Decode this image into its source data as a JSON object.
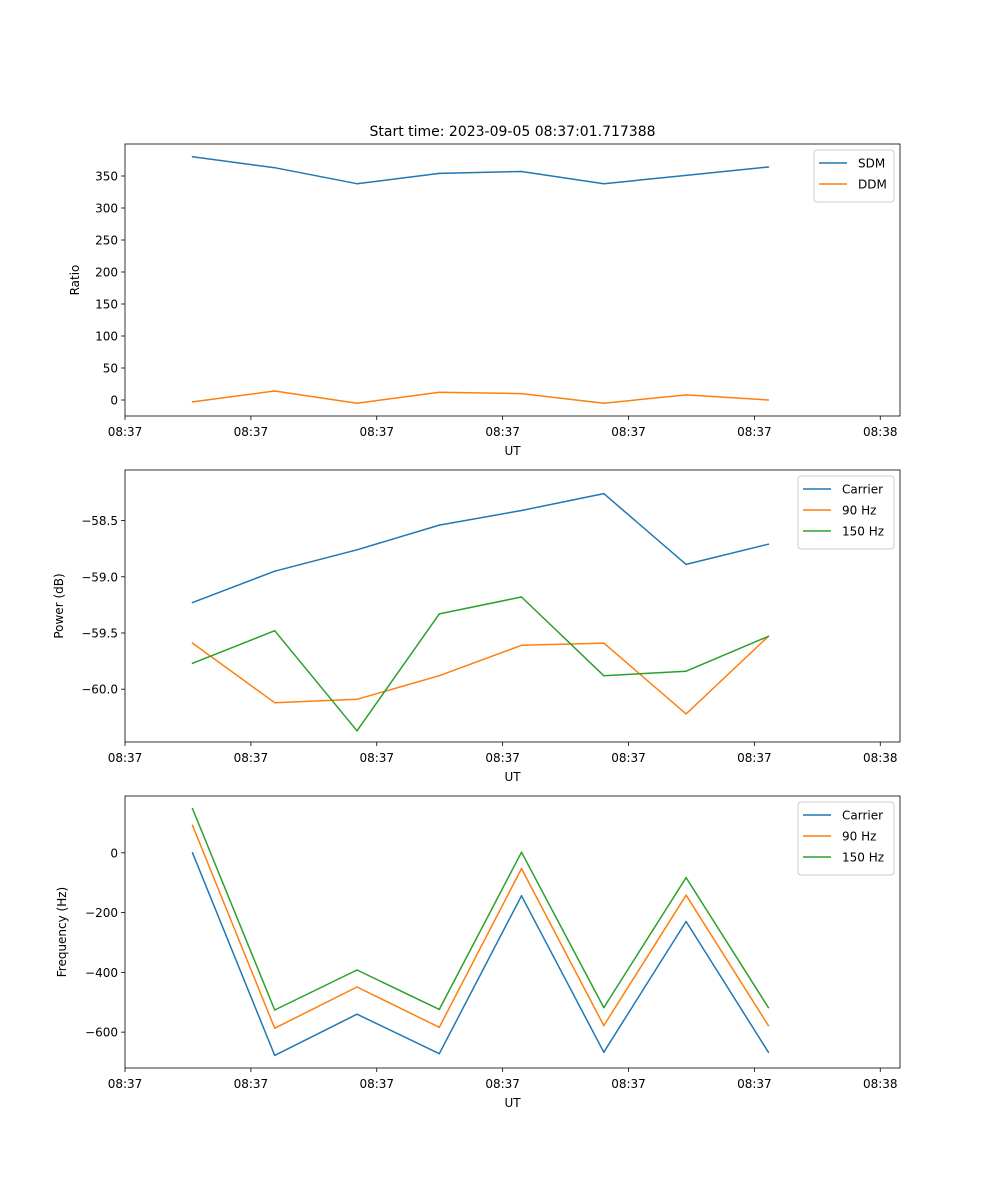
{
  "figure_title": "Start time: 2023-09-05 08:37:01.717388",
  "colors": {
    "blue": "#1f77b4",
    "orange": "#ff7f0e",
    "green": "#2ca02c"
  },
  "chart_data": [
    {
      "type": "line",
      "title": "Start time: 2023-09-05 08:37:01.717388",
      "xlabel": "UT",
      "ylabel": "Ratio",
      "x": [
        1,
        2,
        3,
        4,
        5,
        6,
        7,
        8
      ],
      "xlim": [
        0.18,
        9.6
      ],
      "xticks": [
        0.18,
        1.71,
        3.24,
        4.77,
        6.3,
        7.83,
        9.36
      ],
      "xtick_labels": [
        "08:37",
        "08:37",
        "08:37",
        "08:37",
        "08:37",
        "08:37",
        "08:38"
      ],
      "ylim": [
        -25,
        400
      ],
      "yticks": [
        0,
        50,
        100,
        150,
        200,
        250,
        300,
        350
      ],
      "ytick_labels": [
        "0",
        "50",
        "100",
        "150",
        "200",
        "250",
        "300",
        "350"
      ],
      "legend_position": "top-right",
      "series": [
        {
          "name": "SDM",
          "color": "#1f77b4",
          "values": [
            380,
            363,
            338,
            354,
            357,
            338,
            351,
            364
          ]
        },
        {
          "name": "DDM",
          "color": "#ff7f0e",
          "values": [
            -3,
            14,
            -5,
            12,
            10,
            -5,
            8,
            0
          ]
        }
      ]
    },
    {
      "type": "line",
      "title": "",
      "xlabel": "UT",
      "ylabel": "Power (dB)",
      "x": [
        1,
        2,
        3,
        4,
        5,
        6,
        7,
        8
      ],
      "xlim": [
        0.18,
        9.6
      ],
      "xticks": [
        0.18,
        1.71,
        3.24,
        4.77,
        6.3,
        7.83,
        9.36
      ],
      "xtick_labels": [
        "08:37",
        "08:37",
        "08:37",
        "08:37",
        "08:37",
        "08:37",
        "08:38"
      ],
      "ylim": [
        -60.47,
        -58.05
      ],
      "yticks": [
        -60.0,
        -59.5,
        -59.0,
        -58.5
      ],
      "ytick_labels": [
        "−60.0",
        "−59.5",
        "−59.0",
        "−58.5"
      ],
      "legend_position": "top-right",
      "series": [
        {
          "name": "Carrier",
          "color": "#1f77b4",
          "values": [
            -59.23,
            -58.95,
            -58.76,
            -58.54,
            -58.41,
            -58.26,
            -58.89,
            -58.71
          ]
        },
        {
          "name": "90 Hz",
          "color": "#ff7f0e",
          "values": [
            -59.59,
            -60.12,
            -60.09,
            -59.88,
            -59.61,
            -59.59,
            -60.22,
            -59.53
          ]
        },
        {
          "name": "150 Hz",
          "color": "#2ca02c",
          "values": [
            -59.77,
            -59.48,
            -60.37,
            -59.33,
            -59.18,
            -59.88,
            -59.84,
            -59.53
          ]
        }
      ]
    },
    {
      "type": "line",
      "title": "",
      "xlabel": "UT",
      "ylabel": "Frequency (Hz)",
      "x": [
        1,
        2,
        3,
        4,
        5,
        6,
        7,
        8
      ],
      "xlim": [
        0.18,
        9.6
      ],
      "xticks": [
        0.18,
        1.71,
        3.24,
        4.77,
        6.3,
        7.83,
        9.36
      ],
      "xtick_labels": [
        "08:37",
        "08:37",
        "08:37",
        "08:37",
        "08:37",
        "08:37",
        "08:38"
      ],
      "ylim": [
        -720,
        190
      ],
      "yticks": [
        -600,
        -400,
        -200,
        0
      ],
      "ytick_labels": [
        "−600",
        "−400",
        "−200",
        "0"
      ],
      "legend_position": "top-right",
      "series": [
        {
          "name": "Carrier",
          "color": "#1f77b4",
          "values": [
            0,
            -678,
            -540,
            -672,
            -144,
            -667,
            -230,
            -667
          ]
        },
        {
          "name": "90 Hz",
          "color": "#ff7f0e",
          "values": [
            92,
            -587,
            -449,
            -584,
            -53,
            -578,
            -142,
            -578
          ]
        },
        {
          "name": "150 Hz",
          "color": "#2ca02c",
          "values": [
            148,
            -526,
            -392,
            -524,
            2,
            -518,
            -83,
            -518
          ]
        }
      ]
    }
  ]
}
